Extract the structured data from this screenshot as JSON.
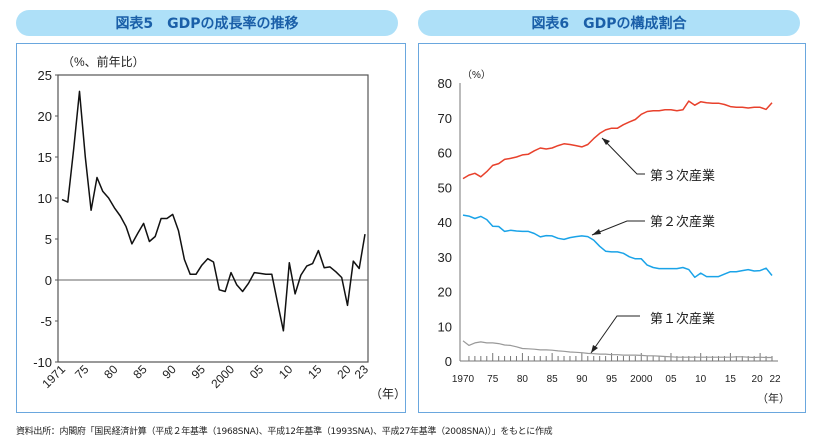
{
  "source_note": "資料出所：内閣府「国民経済計算（平成２年基準（1968SNA)、平成12年基準（1993SNA)、平成27年基準（2008SNA)）」をもとに作成",
  "chart_data": [
    {
      "type": "line",
      "title": "図表5　GDPの成長率の推移",
      "ylabel": "（%、前年比）",
      "xlabel": "（年）",
      "ylim": [
        -10,
        25
      ],
      "yticks": [
        "25",
        "20",
        "15",
        "10",
        "5",
        "0",
        "-5",
        "-10"
      ],
      "ytick_values": [
        25,
        20,
        15,
        10,
        5,
        0,
        -5,
        -10
      ],
      "xticks": [
        "1971",
        "75",
        "80",
        "85",
        "90",
        "95",
        "2000",
        "05",
        "10",
        "15",
        "20",
        "23"
      ],
      "xtick_values": [
        1971,
        1975,
        1980,
        1985,
        1990,
        1995,
        2000,
        2005,
        2010,
        2015,
        2020,
        2023
      ],
      "x_start": 1971,
      "series": [
        {
          "name": "GDP成長率",
          "color": "#111111",
          "values": [
            9.8,
            9.5,
            16.0,
            23.0,
            15.0,
            8.5,
            12.5,
            10.8,
            10.0,
            8.8,
            7.8,
            6.5,
            4.4,
            5.7,
            6.9,
            4.7,
            5.3,
            7.5,
            7.5,
            8.0,
            6.0,
            2.5,
            0.7,
            0.7,
            1.8,
            2.6,
            2.2,
            -1.2,
            -1.4,
            0.9,
            -0.6,
            -1.4,
            -0.4,
            0.9,
            0.8,
            0.7,
            0.7,
            -2.8,
            -6.2,
            2.1,
            -1.7,
            0.6,
            1.7,
            2.0,
            3.6,
            1.5,
            1.6,
            1.0,
            0.3,
            -3.1,
            2.3,
            1.4,
            5.6
          ]
        }
      ]
    },
    {
      "type": "line",
      "title": "図表6　GDPの構成割合",
      "ylabel": "（%）",
      "xlabel": "（年）",
      "ylim": [
        0,
        80
      ],
      "yticks": [
        "80",
        "70",
        "60",
        "50",
        "40",
        "30",
        "20",
        "10",
        "0"
      ],
      "ytick_values": [
        80,
        70,
        60,
        50,
        40,
        30,
        20,
        10,
        0
      ],
      "xticks": [
        "1970",
        "75",
        "80",
        "85",
        "90",
        "95",
        "2000",
        "05",
        "10",
        "15",
        "20",
        "22"
      ],
      "xtick_values": [
        1970,
        1975,
        1980,
        1985,
        1990,
        1995,
        2000,
        2005,
        2010,
        2015,
        2020,
        2022
      ],
      "x_start": 1970,
      "series": [
        {
          "name": "第３次産業",
          "color": "#e8412c",
          "values": [
            52.5,
            53.5,
            54,
            53,
            54.5,
            56.3,
            56.8,
            58,
            58.3,
            58.7,
            59.3,
            59.5,
            60.5,
            61.3,
            61,
            61.3,
            62,
            62.5,
            62.3,
            62,
            61.6,
            62.3,
            64,
            65.5,
            66.5,
            67,
            67,
            68,
            68.8,
            69.5,
            71,
            71.8,
            72,
            72,
            72.3,
            72.3,
            72,
            72.3,
            74.8,
            73.6,
            74.6,
            74.3,
            74.2,
            74.2,
            73.8,
            73.2,
            73,
            73,
            72.8,
            73,
            73,
            72.4,
            74.3
          ]
        },
        {
          "name": "第２次産業",
          "color": "#1aa3e8",
          "values": [
            42,
            41.7,
            41,
            41.6,
            40.7,
            38.8,
            38.7,
            37.3,
            37.6,
            37.4,
            37.3,
            37.3,
            36.7,
            35.7,
            36.1,
            36,
            35.3,
            35,
            35.5,
            35.8,
            36,
            35.8,
            34.8,
            33,
            31.6,
            31.4,
            31.4,
            31,
            30,
            29.4,
            29.4,
            27.6,
            26.9,
            26.6,
            26.6,
            26.6,
            26.6,
            26.9,
            26.3,
            24.1,
            25.3,
            24.3,
            24.3,
            24.3,
            25,
            25.7,
            25.7,
            26,
            26.3,
            25.9,
            26,
            26.7,
            24.6
          ]
        },
        {
          "name": "第１次産業",
          "color": "#999999",
          "values": [
            5.8,
            4.5,
            5.2,
            5.5,
            5.2,
            5.2,
            5,
            4.6,
            4.5,
            4.1,
            3.6,
            3.5,
            3.4,
            3.2,
            3.2,
            3.1,
            2.9,
            2.8,
            2.6,
            2.5,
            2.4,
            2.2,
            2.1,
            2,
            2,
            1.8,
            1.8,
            1.7,
            1.7,
            1.7,
            1.6,
            1.5,
            1.5,
            1.4,
            1.3,
            1.2,
            1.1,
            1.1,
            1.1,
            1.1,
            1.1,
            1.1,
            1.1,
            1.1,
            1.1,
            1.1,
            1.2,
            1.2,
            1.1,
            1.0,
            1.1,
            1.0,
            1.0
          ]
        }
      ]
    }
  ]
}
